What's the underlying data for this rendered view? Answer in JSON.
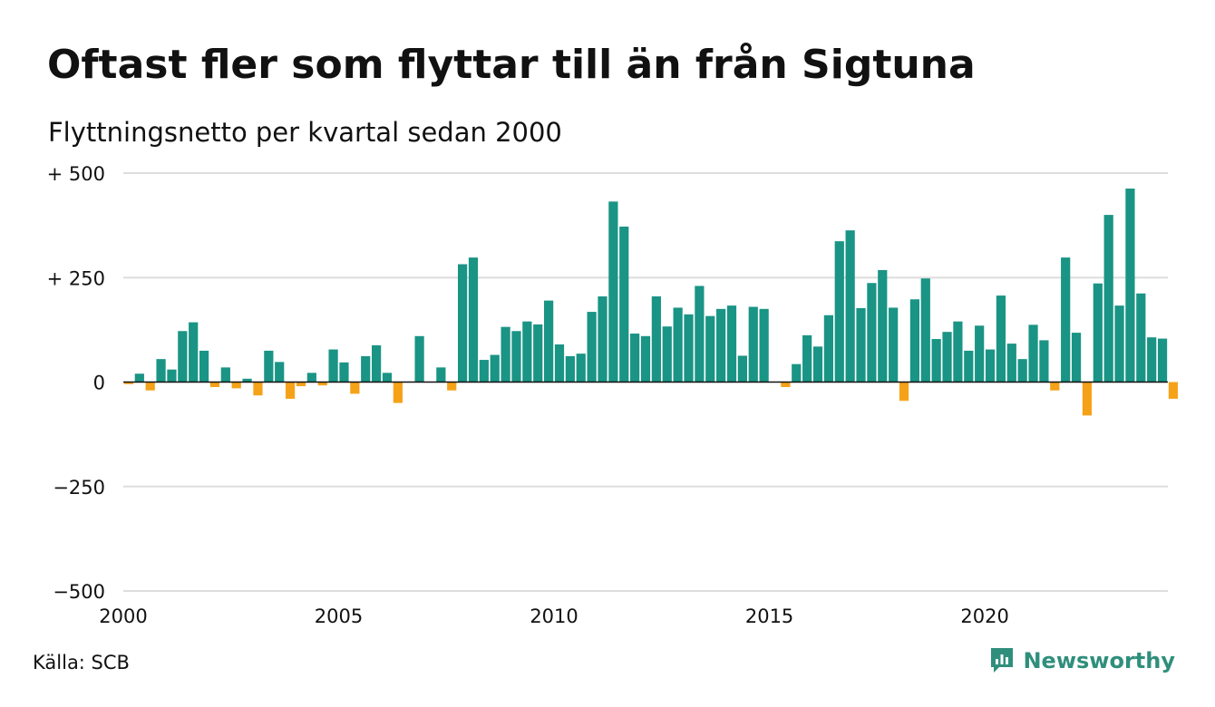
{
  "chart_data": {
    "type": "bar",
    "title": "Oftast fler som flyttar till än från Sigtuna",
    "subtitle": "Flyttningsnetto per kvartal sedan 2000",
    "source": "Källa: SCB",
    "brand": "Newsworthy",
    "x_start_year": 2000,
    "periods_per_year": 4,
    "x_ticks": [
      {
        "value": 2000,
        "label": "2000"
      },
      {
        "value": 2005,
        "label": "2005"
      },
      {
        "value": 2010,
        "label": "2010"
      },
      {
        "value": 2015,
        "label": "2015"
      },
      {
        "value": 2020,
        "label": "2020"
      }
    ],
    "y_ticks": [
      {
        "value": 500,
        "label": "+ 500"
      },
      {
        "value": 250,
        "label": "+ 250"
      },
      {
        "value": 0,
        "label": "0"
      },
      {
        "value": -250,
        "label": "−250"
      },
      {
        "value": -500,
        "label": "−500"
      }
    ],
    "ylim": [
      -500,
      500
    ],
    "xlim": [
      2000,
      2024.25
    ],
    "grid": true,
    "colors": {
      "positive": "#1a9485",
      "negative": "#f5a219",
      "grid": "#dddddd",
      "axis": "#111111",
      "brand": "#2f8f7c"
    },
    "values": [
      -5,
      20,
      -20,
      55,
      30,
      122,
      143,
      75,
      -12,
      35,
      -15,
      8,
      -32,
      75,
      48,
      -40,
      -10,
      22,
      -8,
      78,
      47,
      -28,
      62,
      88,
      22,
      -50,
      0,
      110,
      0,
      35,
      -20,
      282,
      298,
      53,
      65,
      132,
      122,
      145,
      138,
      195,
      90,
      62,
      68,
      168,
      205,
      432,
      372,
      116,
      110,
      205,
      133,
      178,
      162,
      230,
      158,
      175,
      183,
      63,
      180,
      175,
      0,
      -12,
      43,
      112,
      85,
      160,
      337,
      363,
      177,
      237,
      268,
      178,
      -45,
      198,
      248,
      103,
      120,
      145,
      75,
      135,
      78,
      207,
      92,
      55,
      137,
      100,
      -20,
      298,
      118,
      -80,
      236,
      400,
      183,
      463,
      212,
      107,
      104,
      -40
    ]
  }
}
